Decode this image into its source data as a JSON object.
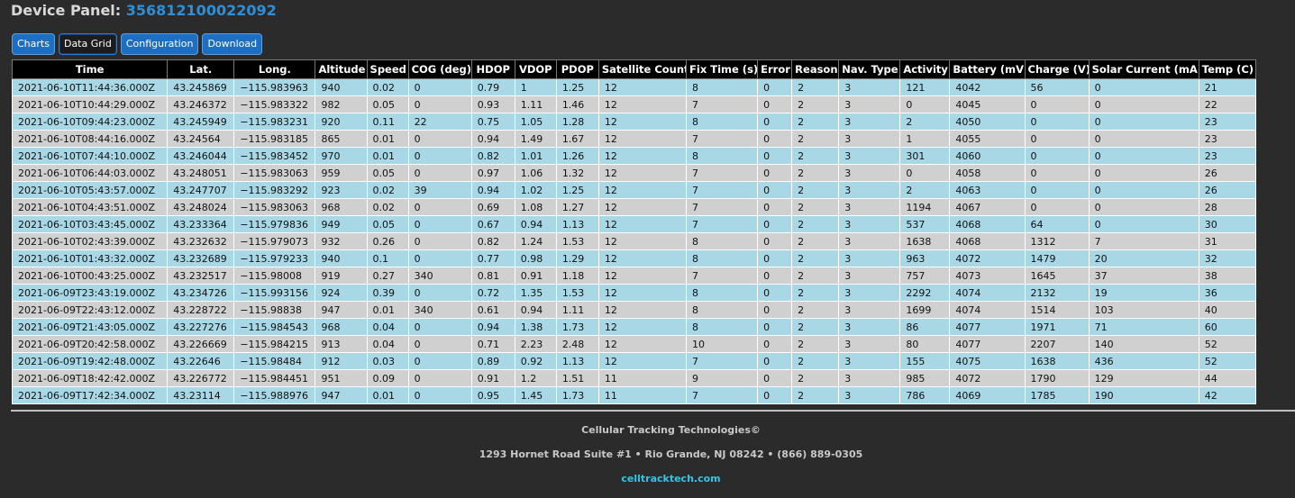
{
  "header": {
    "title_label": "Device Panel:",
    "device_id": "356812100022092"
  },
  "tabs": [
    {
      "label": "Charts",
      "active": false
    },
    {
      "label": "Data Grid",
      "active": true
    },
    {
      "label": "Configuration",
      "active": false
    },
    {
      "label": "Download",
      "active": false
    }
  ],
  "table": {
    "columns": [
      "Time",
      "Lat.",
      "Long.",
      "Altitude",
      "Speed",
      "COG (deg)",
      "HDOP",
      "VDOP",
      "PDOP",
      "Satellite Count",
      "Fix Time (s)",
      "Error",
      "Reason",
      "Nav. Type",
      "Activity",
      "Battery (mV)",
      "Charge (V)",
      "Solar Current (mA)",
      "Temp (C)"
    ],
    "rows": [
      [
        "2021-06-10T11:44:36.000Z",
        "43.245869",
        "−115.983963",
        "940",
        "0.02",
        "0",
        "0.79",
        "1",
        "1.25",
        "12",
        "8",
        "0",
        "2",
        "3",
        "121",
        "4042",
        "56",
        "0",
        "21"
      ],
      [
        "2021-06-10T10:44:29.000Z",
        "43.246372",
        "−115.983322",
        "982",
        "0.05",
        "0",
        "0.93",
        "1.11",
        "1.46",
        "12",
        "7",
        "0",
        "2",
        "3",
        "0",
        "4045",
        "0",
        "0",
        "22"
      ],
      [
        "2021-06-10T09:44:23.000Z",
        "43.245949",
        "−115.983231",
        "920",
        "0.11",
        "22",
        "0.75",
        "1.05",
        "1.28",
        "12",
        "8",
        "0",
        "2",
        "3",
        "2",
        "4050",
        "0",
        "0",
        "23"
      ],
      [
        "2021-06-10T08:44:16.000Z",
        "43.24564",
        "−115.983185",
        "865",
        "0.01",
        "0",
        "0.94",
        "1.49",
        "1.67",
        "12",
        "7",
        "0",
        "2",
        "3",
        "1",
        "4055",
        "0",
        "0",
        "23"
      ],
      [
        "2021-06-10T07:44:10.000Z",
        "43.246044",
        "−115.983452",
        "970",
        "0.01",
        "0",
        "0.82",
        "1.01",
        "1.26",
        "12",
        "8",
        "0",
        "2",
        "3",
        "301",
        "4060",
        "0",
        "0",
        "23"
      ],
      [
        "2021-06-10T06:44:03.000Z",
        "43.248051",
        "−115.983063",
        "959",
        "0.05",
        "0",
        "0.97",
        "1.06",
        "1.32",
        "12",
        "7",
        "0",
        "2",
        "3",
        "0",
        "4058",
        "0",
        "0",
        "26"
      ],
      [
        "2021-06-10T05:43:57.000Z",
        "43.247707",
        "−115.983292",
        "923",
        "0.02",
        "39",
        "0.94",
        "1.02",
        "1.25",
        "12",
        "7",
        "0",
        "2",
        "3",
        "2",
        "4063",
        "0",
        "0",
        "26"
      ],
      [
        "2021-06-10T04:43:51.000Z",
        "43.248024",
        "−115.983063",
        "968",
        "0.02",
        "0",
        "0.69",
        "1.08",
        "1.27",
        "12",
        "7",
        "0",
        "2",
        "3",
        "1194",
        "4067",
        "0",
        "0",
        "28"
      ],
      [
        "2021-06-10T03:43:45.000Z",
        "43.233364",
        "−115.979836",
        "949",
        "0.05",
        "0",
        "0.67",
        "0.94",
        "1.13",
        "12",
        "7",
        "0",
        "2",
        "3",
        "537",
        "4068",
        "64",
        "0",
        "30"
      ],
      [
        "2021-06-10T02:43:39.000Z",
        "43.232632",
        "−115.979073",
        "932",
        "0.26",
        "0",
        "0.82",
        "1.24",
        "1.53",
        "12",
        "8",
        "0",
        "2",
        "3",
        "1638",
        "4068",
        "1312",
        "7",
        "31"
      ],
      [
        "2021-06-10T01:43:32.000Z",
        "43.232689",
        "−115.979233",
        "940",
        "0.1",
        "0",
        "0.77",
        "0.98",
        "1.29",
        "12",
        "8",
        "0",
        "2",
        "3",
        "963",
        "4072",
        "1479",
        "20",
        "32"
      ],
      [
        "2021-06-10T00:43:25.000Z",
        "43.232517",
        "−115.98008",
        "919",
        "0.27",
        "340",
        "0.81",
        "0.91",
        "1.18",
        "12",
        "7",
        "0",
        "2",
        "3",
        "757",
        "4073",
        "1645",
        "37",
        "38"
      ],
      [
        "2021-06-09T23:43:19.000Z",
        "43.234726",
        "−115.993156",
        "924",
        "0.39",
        "0",
        "0.72",
        "1.35",
        "1.53",
        "12",
        "8",
        "0",
        "2",
        "3",
        "2292",
        "4074",
        "2132",
        "19",
        "36"
      ],
      [
        "2021-06-09T22:43:12.000Z",
        "43.228722",
        "−115.98838",
        "947",
        "0.01",
        "340",
        "0.61",
        "0.94",
        "1.11",
        "12",
        "8",
        "0",
        "2",
        "3",
        "1699",
        "4074",
        "1514",
        "103",
        "40"
      ],
      [
        "2021-06-09T21:43:05.000Z",
        "43.227276",
        "−115.984543",
        "968",
        "0.04",
        "0",
        "0.94",
        "1.38",
        "1.73",
        "12",
        "8",
        "0",
        "2",
        "3",
        "86",
        "4077",
        "1971",
        "71",
        "60"
      ],
      [
        "2021-06-09T20:42:58.000Z",
        "43.226669",
        "−115.984215",
        "913",
        "0.04",
        "0",
        "0.71",
        "2.23",
        "2.48",
        "12",
        "10",
        "0",
        "2",
        "3",
        "80",
        "4077",
        "2207",
        "140",
        "52"
      ],
      [
        "2021-06-09T19:42:48.000Z",
        "43.22646",
        "−115.98484",
        "912",
        "0.03",
        "0",
        "0.89",
        "0.92",
        "1.13",
        "12",
        "7",
        "0",
        "2",
        "3",
        "155",
        "4075",
        "1638",
        "436",
        "52"
      ],
      [
        "2021-06-09T18:42:42.000Z",
        "43.226772",
        "−115.984451",
        "951",
        "0.09",
        "0",
        "0.91",
        "1.2",
        "1.51",
        "11",
        "9",
        "0",
        "2",
        "3",
        "985",
        "4072",
        "1790",
        "129",
        "44"
      ],
      [
        "2021-06-09T17:42:34.000Z",
        "43.23114",
        "−115.988976",
        "947",
        "0.01",
        "0",
        "0.95",
        "1.45",
        "1.73",
        "11",
        "7",
        "0",
        "2",
        "3",
        "786",
        "4069",
        "1785",
        "190",
        "42"
      ]
    ]
  },
  "footer": {
    "company": "Cellular Tracking Technologies©",
    "address": "1293 Hornet Road Suite #1 • Rio Grande, NJ 08242 • (866) 889-0305",
    "link": "celltracktech.com"
  },
  "colors": {
    "background": "#2b2b2b",
    "accent_blue": "#2e8fd8",
    "row_odd": "#a8d8e6",
    "row_even": "#d0d0d0",
    "link": "#2fc7e8"
  }
}
